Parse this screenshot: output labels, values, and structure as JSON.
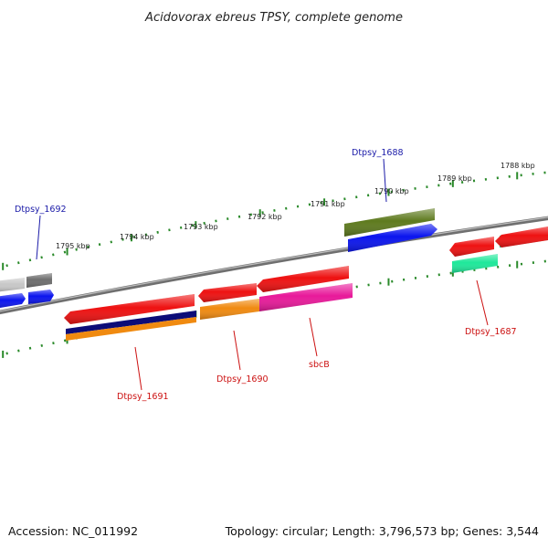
{
  "title": "Acidovorax ebreus TPSY, complete genome",
  "footer": {
    "accession": "Accession: NC_011992",
    "topology": "Topology: circular; Length: 3,796,573 bp; Genes: 3,544"
  },
  "kbp_labels": [
    "1795 kbp",
    "1794 kbp",
    "1793 kbp",
    "1792 kbp",
    "1791 kbp",
    "1790 kbp",
    "1789 kbp",
    "1788 kbp"
  ],
  "gene_labels": [
    {
      "text": "Dtpsy_1692",
      "color": "#1a1aa8"
    },
    {
      "text": "Dtpsy_1688",
      "color": "#1a1aa8"
    },
    {
      "text": "Dtpsy_1691",
      "color": "#cc1111"
    },
    {
      "text": "Dtpsy_1690",
      "color": "#cc1111"
    },
    {
      "text": "sbcB",
      "color": "#cc1111"
    },
    {
      "text": "Dtpsy_1687",
      "color": "#cc1111"
    }
  ],
  "colors": {
    "ticks": "#2a8a2a",
    "backbone": "#7a7a7a",
    "red": "#ee1111",
    "blue": "#0a14ee",
    "olive": "#5e7a1e",
    "navy": "#0c0c78",
    "orange": "#f08a10",
    "magenta": "#e8199a",
    "green": "#1ee89a",
    "lightgray": "#c8c8c8",
    "darkgray": "#6e6e6e"
  }
}
